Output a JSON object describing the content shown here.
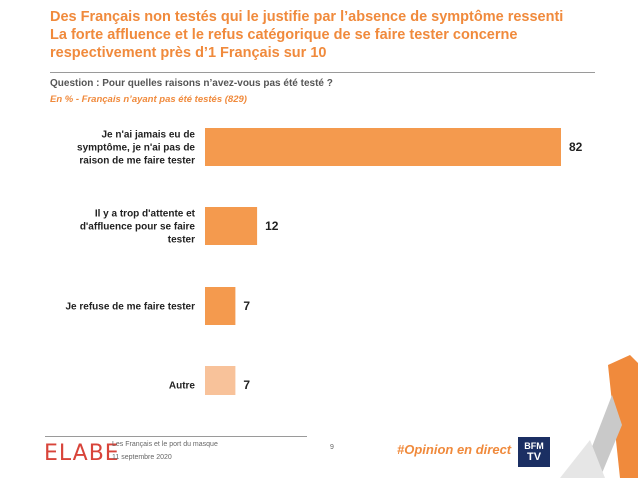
{
  "title_lines": [
    "Des Français non testés qui le justifie par l’absence de symptôme ressenti",
    "La forte affluence et le refus catégorique de se faire tester concerne",
    "respectivement près d’1 Français sur 10"
  ],
  "question": "Question : Pour quelles raisons n’avez-vous pas été testé ?",
  "base": "En  % - Français n’ayant pas été testés (829)",
  "chart_data": {
    "type": "bar",
    "orientation": "horizontal",
    "unit": "%",
    "categories": [
      [
        "Je n'ai jamais eu de",
        "symptôme, je n'ai pas de",
        "raison de me faire tester"
      ],
      [
        "Il y a trop d'attente et",
        "d'affluence pour se faire",
        "tester"
      ],
      [
        "Je refuse de me faire tester"
      ],
      [
        "Autre"
      ]
    ],
    "values": [
      82,
      12,
      7,
      7
    ],
    "bar_colors": [
      "#F49A4E",
      "#F49A4E",
      "#F49A4E",
      "#F8C29A"
    ],
    "xlim": [
      0,
      82
    ],
    "grid": false,
    "legend": "none"
  },
  "footer": {
    "logo": "ELABE",
    "line1": "Les Français et le port du masque",
    "line2": "11 septembre 2020",
    "page": "9",
    "hashtag": "#Opinion en direct",
    "bfm_top": "BFM",
    "bfm_bottom": "TV"
  },
  "colors": {
    "accent": "#F08A3C",
    "bar": "#F49A4E",
    "bar_light": "#F8C29A",
    "logo": "#D8443A",
    "bfm": "#1b2f63"
  }
}
